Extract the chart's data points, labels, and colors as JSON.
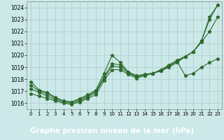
{
  "background_color": "#cce8e8",
  "grid_color": "#aacccc",
  "line_color": "#2d6a2d",
  "xlabel": "Graphe pression niveau de la mer (hPa)",
  "xlabel_fontsize": 7.5,
  "xlabel_bg": "#2d6a2d",
  "xlabel_fg": "#ffffff",
  "ylim": [
    1015.5,
    1024.5
  ],
  "xlim": [
    -0.5,
    23.5
  ],
  "yticks": [
    1016,
    1017,
    1018,
    1019,
    1020,
    1021,
    1022,
    1023,
    1024
  ],
  "xticks": [
    0,
    1,
    2,
    3,
    4,
    5,
    6,
    7,
    8,
    9,
    10,
    11,
    12,
    13,
    14,
    15,
    16,
    17,
    18,
    19,
    20,
    21,
    22,
    23
  ],
  "series": [
    [
      1017.8,
      1017.1,
      1016.9,
      1016.5,
      1016.2,
      1016.1,
      1016.4,
      1016.7,
      1017.1,
      1018.5,
      1020.0,
      1019.4,
      1018.6,
      1018.3,
      1018.4,
      1018.5,
      1018.7,
      1019.1,
      1019.5,
      1018.3,
      1018.5,
      1019.0,
      1019.4,
      1019.7
    ],
    [
      1017.5,
      1017.0,
      1016.8,
      1016.4,
      1016.2,
      1016.1,
      1016.3,
      1016.6,
      1017.0,
      1018.2,
      1019.3,
      1019.2,
      1018.6,
      1018.3,
      1018.4,
      1018.5,
      1018.8,
      1019.2,
      1019.6,
      1019.9,
      1020.3,
      1021.1,
      1022.0,
      1023.2
    ],
    [
      1017.2,
      1016.9,
      1016.6,
      1016.3,
      1016.1,
      1016.0,
      1016.2,
      1016.5,
      1016.9,
      1018.1,
      1019.1,
      1019.0,
      1018.5,
      1018.2,
      1018.3,
      1018.5,
      1018.7,
      1019.1,
      1019.5,
      1019.9,
      1020.3,
      1021.2,
      1023.2,
      1024.2
    ],
    [
      1016.8,
      1016.6,
      1016.4,
      1016.2,
      1016.0,
      1015.9,
      1016.1,
      1016.4,
      1016.7,
      1017.9,
      1018.8,
      1018.8,
      1018.4,
      1018.1,
      1018.3,
      1018.5,
      1018.7,
      1019.0,
      1019.4,
      1019.9,
      1020.3,
      1021.2,
      1023.0,
      1024.2
    ]
  ],
  "marker": "*",
  "markersize": 3.5,
  "linewidth": 0.8
}
